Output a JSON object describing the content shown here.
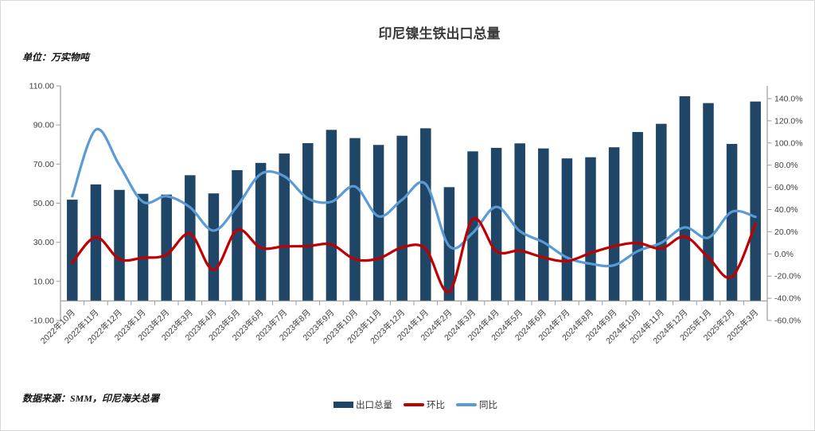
{
  "page": {
    "title": "印尼镍生铁出口总量",
    "unit_label": "单位：万实物吨",
    "source_label": "数据来源：SMM，印尼海关总署"
  },
  "colors": {
    "bar": "#1f4567",
    "mom_line": "#c00000",
    "yoy_line": "#5b9bd5",
    "axis_line": "#9b9b9b",
    "tick_text": "#3f3f3f"
  },
  "legend": {
    "items": [
      {
        "label": "出口总量",
        "type": "bar",
        "color": "#1f4567"
      },
      {
        "label": "环比",
        "type": "line",
        "color": "#c00000"
      },
      {
        "label": "同比",
        "type": "line",
        "color": "#5b9bd5"
      }
    ]
  },
  "chart_data": {
    "type": "bar",
    "subtype": "bar+line combo, dual axis",
    "title": "印尼镍生铁出口总量",
    "unit": "万实物吨",
    "grid": false,
    "legend_position": "bottom",
    "categories": [
      "2022年10月",
      "2022年11月",
      "2022年12月",
      "2023年1月",
      "2023年2月",
      "2023年3月",
      "2023年4月",
      "2023年5月",
      "2023年6月",
      "2023年7月",
      "2023年8月",
      "2023年9月",
      "2023年10月",
      "2023年11月",
      "2023年12月",
      "2024年1月",
      "2024年2月",
      "2024年3月",
      "2024年4月",
      "2024年5月",
      "2024年6月",
      "2024年7月",
      "2024年8月",
      "2024年9月",
      "2024年10月",
      "2024年11月",
      "2024年12月",
      "2025年1月",
      "2025年2月",
      "2025年3月"
    ],
    "series": [
      {
        "name": "出口总量",
        "type": "bar",
        "axis": "left",
        "color": "#1f4567",
        "values": [
          51.8,
          59.6,
          56.8,
          54.8,
          54.4,
          64.3,
          55.0,
          66.9,
          70.6,
          75.4,
          80.7,
          87.5,
          83.3,
          79.8,
          84.5,
          88.3,
          58.2,
          76.5,
          78.3,
          80.6,
          78.0,
          72.9,
          73.5,
          78.6,
          86.4,
          90.6,
          104.7,
          101.2,
          80.3,
          102.0
        ]
      },
      {
        "name": "环比",
        "type": "line",
        "axis": "right",
        "color": "#c00000",
        "values": [
          -8.0,
          15.1,
          -4.7,
          -3.5,
          -0.7,
          18.2,
          -14.5,
          21.6,
          5.5,
          6.8,
          7.0,
          8.4,
          -4.8,
          -4.2,
          5.9,
          4.5,
          -34.1,
          31.4,
          2.4,
          2.9,
          -3.2,
          -6.5,
          0.8,
          6.9,
          9.9,
          4.9,
          15.6,
          -3.3,
          -20.7,
          27.0
        ]
      },
      {
        "name": "同比",
        "type": "line",
        "axis": "right",
        "color": "#5b9bd5",
        "values": [
          52.0,
          112.0,
          80.0,
          47.0,
          52.0,
          42.0,
          21.0,
          43.0,
          72.0,
          70.0,
          50.0,
          47.0,
          60.8,
          33.9,
          48.8,
          63.0,
          7.0,
          19.0,
          42.4,
          20.5,
          10.5,
          -3.3,
          -8.9,
          -10.2,
          2.5,
          10.0,
          23.9,
          14.6,
          38.0,
          33.3
        ]
      }
    ],
    "left_axis": {
      "ylim": [
        -10,
        110
      ],
      "ticks": [
        110,
        90,
        70,
        50,
        30,
        10,
        -10
      ],
      "format": "0.00"
    },
    "right_axis": {
      "ylim": [
        -60,
        140
      ],
      "ticks": [
        140,
        120,
        100,
        80,
        60,
        40,
        20,
        0,
        -20,
        -40,
        -60
      ],
      "format": "0.0%"
    }
  }
}
